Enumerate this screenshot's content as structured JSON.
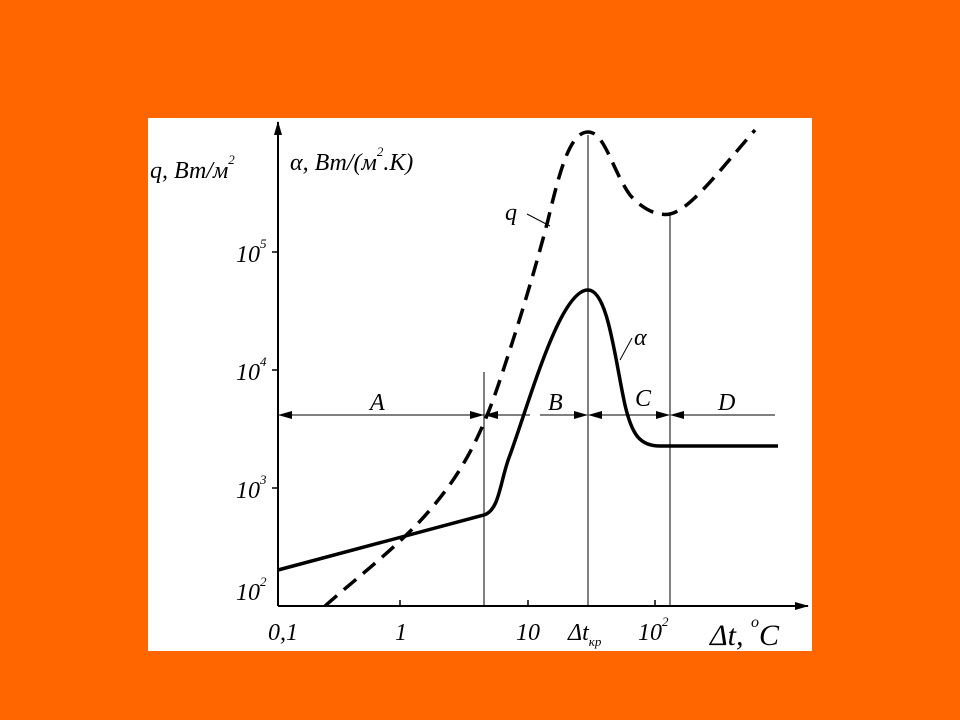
{
  "y_axis": {
    "q_label": {
      "main": "q, Вт/м",
      "sup": "2"
    },
    "alpha_label": {
      "main": "α, Вт/(м",
      "sup": "2",
      "tail": ".К)"
    },
    "ticks": [
      {
        "base": "10",
        "exp": "5"
      },
      {
        "base": "10",
        "exp": "4"
      },
      {
        "base": "10",
        "exp": "3"
      },
      {
        "base": "10",
        "exp": "2"
      }
    ]
  },
  "x_axis": {
    "ticks": [
      "0,1",
      "1",
      "10"
    ],
    "critical": {
      "main": "Δt",
      "sub": "кр"
    },
    "last_tick": {
      "base": "10",
      "exp": "2"
    },
    "label": {
      "main": "Δt, ",
      "sup": "o",
      "tail": "C"
    }
  },
  "regions": [
    "A",
    "B",
    "C",
    "D"
  ],
  "curves": {
    "q": "q",
    "alpha": "α"
  }
}
